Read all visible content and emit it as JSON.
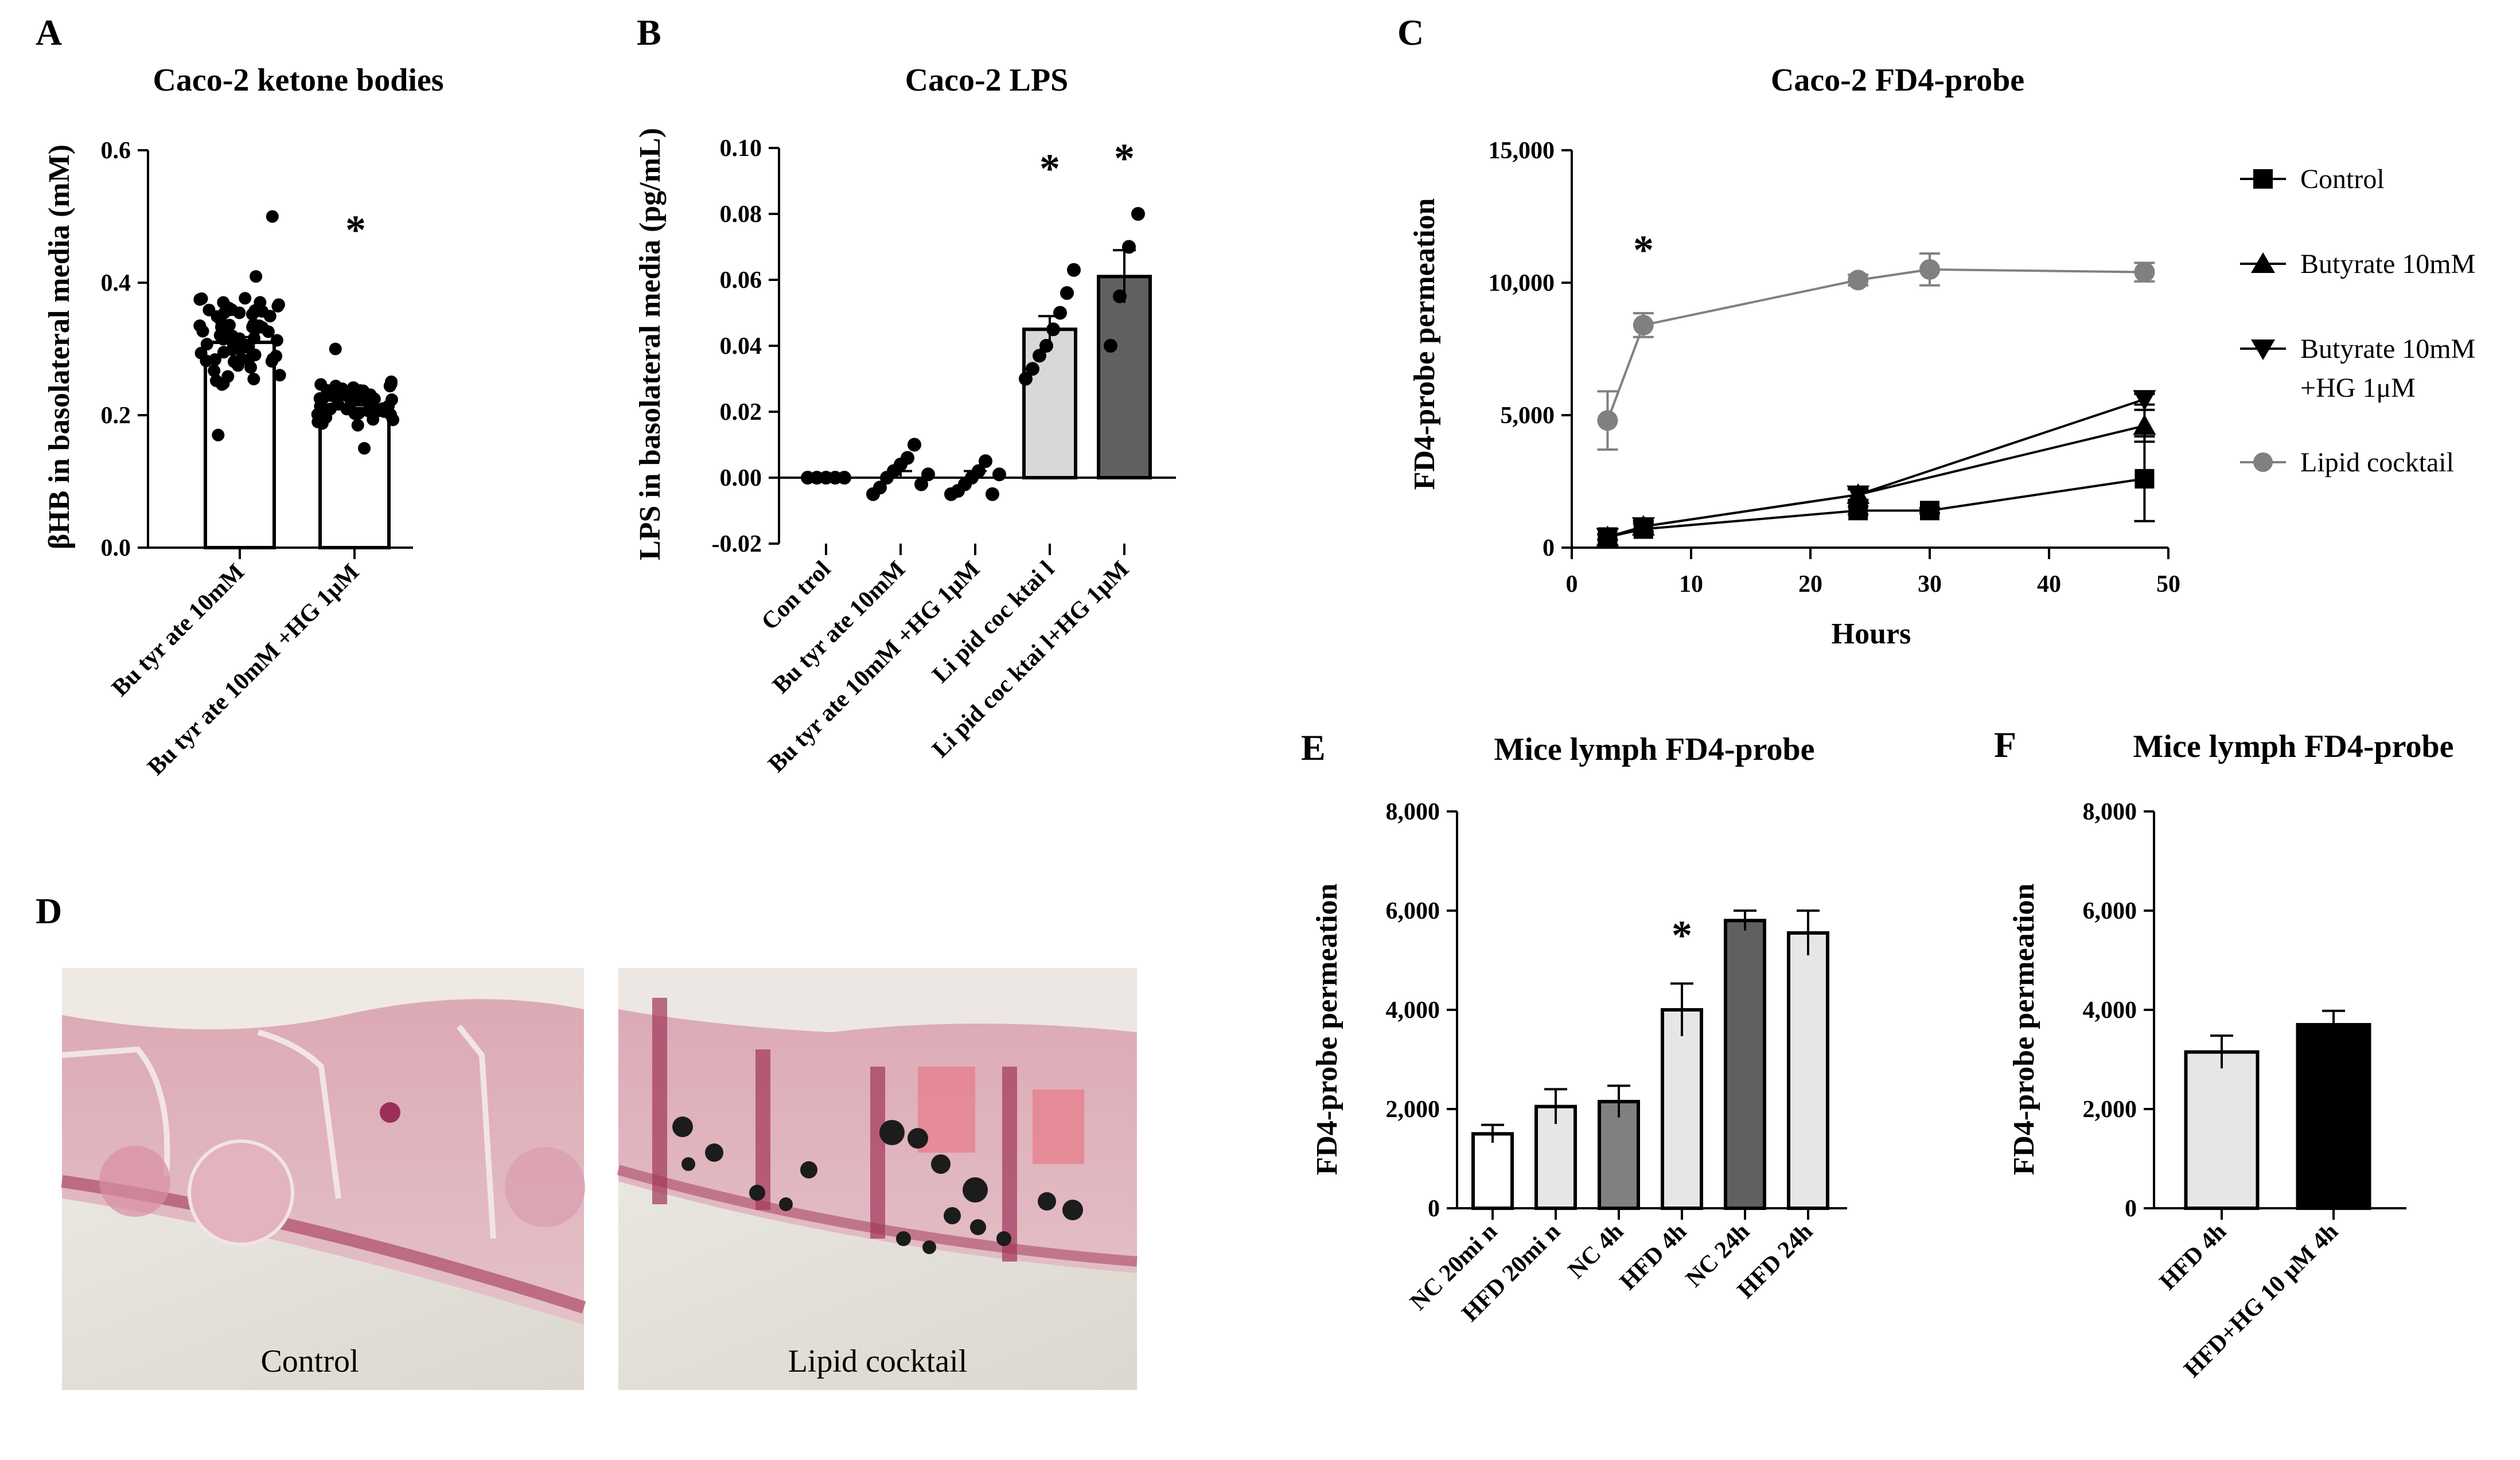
{
  "panels": {
    "A": {
      "letter": "A",
      "title": "Caco-2 ketone bodies",
      "ylabel": "βHB in basolateral media (mM)",
      "yticks": [
        "0.0",
        "0.2",
        "0.4",
        "0.6"
      ],
      "xticks": [
        "Bu tyr ate 10mM",
        "Bu tyr ate 10mM +HG 1μM"
      ],
      "star": "*"
    },
    "B": {
      "letter": "B",
      "title": "Caco-2 LPS",
      "ylabel": "LPS in basolateral media (pg/mL)",
      "yticks": [
        "-0.02",
        "0.00",
        "0.02",
        "0.04",
        "0.06",
        "0.08",
        "0.10"
      ],
      "xticks": [
        "Con trol",
        "Bu tyr ate 10mM",
        "Bu tyr ate 10mM +HG 1μM",
        "Li pid coc ktai l",
        "Li pid coc ktai l+HG 1μM"
      ],
      "star": "*"
    },
    "C": {
      "letter": "C",
      "title": "Caco-2 FD4-probe",
      "ylabel": "FD4-probe permeation",
      "xlabel": "Hours",
      "yticks": [
        "0",
        "5,000",
        "10,000",
        "15,000"
      ],
      "xticks": [
        "0",
        "10",
        "20",
        "30",
        "40",
        "50"
      ],
      "legend": [
        "Control",
        "Butyrate 10mM",
        "Butyrate 10mM",
        "+HG 1μM",
        "Lipid cocktail"
      ],
      "star": "*"
    },
    "D": {
      "letter": "D",
      "labels": [
        "Control",
        "Lipid cocktail"
      ]
    },
    "E": {
      "letter": "E",
      "title": "Mice lymph FD4-probe",
      "ylabel": "FD4-probe permeation",
      "yticks": [
        "0",
        "2,000",
        "4,000",
        "6,000",
        "8,000"
      ],
      "xticks": [
        "NC 20mi n",
        "HFD 20mi n",
        "NC 4h",
        "HFD 4h",
        "NC 24h",
        "HFD 24h"
      ],
      "star": "*"
    },
    "F": {
      "letter": "F",
      "title": "Mice lymph FD4-probe",
      "ylabel": "FD4-probe permeation",
      "yticks": [
        "0",
        "2,000",
        "4,000",
        "6,000",
        "8,000"
      ],
      "xticks": [
        "HFD 4h",
        "HFD+HG 10 μM 4h"
      ]
    }
  },
  "chart_data": [
    {
      "panel": "A",
      "type": "bar",
      "title": "Caco-2 ketone bodies",
      "ylabel": "βHB in basolateral media (mM)",
      "ylim": [
        0,
        0.6
      ],
      "categories": [
        "Butyrate 10mM",
        "Butyrate 10mM +HG 1μM"
      ],
      "values": [
        0.31,
        0.21
      ],
      "errors": [
        0.008,
        0.005
      ],
      "colors": [
        "#ffffff",
        "#ffffff"
      ],
      "point_range": [
        [
          0.17,
          0.5
        ],
        [
          0.15,
          0.3
        ]
      ],
      "n_points": [
        70,
        56
      ],
      "significant": [
        false,
        true
      ]
    },
    {
      "panel": "B",
      "type": "bar",
      "title": "Caco-2 LPS",
      "ylabel": "LPS in basolateral media (pg/mL)",
      "ylim": [
        -0.02,
        0.1
      ],
      "categories": [
        "Control",
        "Butyrate 10mM",
        "Butyrate 10mM +HG 1μM",
        "Lipid cocktail",
        "Lipid cocktail+HG 1μM"
      ],
      "values": [
        0.0,
        0.0,
        0.0,
        0.045,
        0.061
      ],
      "errors": [
        0.0,
        0.002,
        0.002,
        0.004,
        0.008
      ],
      "colors": [
        "#ffffff",
        "#ffffff",
        "#ffffff",
        "#d8d8d8",
        "#606060"
      ],
      "points": [
        [
          0.0,
          0.0,
          0.0,
          0.0,
          0.0
        ],
        [
          -0.005,
          -0.003,
          0.0,
          0.002,
          0.004,
          0.006,
          0.01,
          -0.002,
          0.001
        ],
        [
          -0.005,
          -0.004,
          -0.002,
          0.0,
          0.002,
          0.005,
          -0.005,
          0.001
        ],
        [
          0.03,
          0.033,
          0.037,
          0.04,
          0.045,
          0.05,
          0.056,
          0.063
        ],
        [
          0.04,
          0.055,
          0.07,
          0.08
        ]
      ],
      "significant": [
        false,
        false,
        false,
        true,
        true
      ]
    },
    {
      "panel": "C",
      "type": "line",
      "title": "Caco-2 FD4-probe",
      "xlabel": "Hours",
      "ylabel": "FD4-probe permeation",
      "xlim": [
        0,
        50
      ],
      "ylim": [
        0,
        15000
      ],
      "series": [
        {
          "name": "Control",
          "marker": "square",
          "color": "#000000",
          "x": [
            3,
            6,
            24,
            30,
            48
          ],
          "y": [
            400,
            700,
            1400,
            1400,
            2600
          ],
          "err": [
            100,
            200,
            150,
            100,
            1600
          ]
        },
        {
          "name": "Butyrate 10mM",
          "marker": "triangle-up",
          "color": "#000000",
          "x": [
            3,
            6,
            24,
            48
          ],
          "y": [
            400,
            800,
            2000,
            4600
          ],
          "err": [
            100,
            200,
            200,
            600
          ]
        },
        {
          "name": "Butyrate 10mM +HG 1μM",
          "marker": "triangle-down",
          "color": "#000000",
          "x": [
            3,
            6,
            24,
            48
          ],
          "y": [
            400,
            800,
            2000,
            5600
          ],
          "err": [
            100,
            200,
            200,
            200
          ]
        },
        {
          "name": "Lipid cocktail",
          "marker": "circle",
          "color": "#808080",
          "x": [
            3,
            6,
            24,
            30,
            48
          ],
          "y": [
            4800,
            8400,
            10100,
            10500,
            10400
          ],
          "err": [
            1100,
            450,
            200,
            600,
            350
          ]
        }
      ],
      "significant_x": [
        6
      ]
    },
    {
      "panel": "E",
      "type": "bar",
      "title": "Mice lymph FD4-probe",
      "ylabel": "FD4-probe permeation",
      "ylim": [
        0,
        8000
      ],
      "categories": [
        "NC 20min",
        "HFD 20min",
        "NC 4h",
        "HFD 4h",
        "NC 24h",
        "HFD 24h"
      ],
      "values": [
        1500,
        2050,
        2150,
        4000,
        5800,
        5550
      ],
      "errors": [
        180,
        350,
        320,
        530,
        200,
        450
      ],
      "colors": [
        "#ffffff",
        "#e6e6e6",
        "#808080",
        "#e6e6e6",
        "#606060",
        "#e6e6e6"
      ],
      "significant": [
        false,
        false,
        false,
        true,
        false,
        false
      ]
    },
    {
      "panel": "F",
      "type": "bar",
      "title": "Mice lymph FD4-probe",
      "ylabel": "FD4-probe permeation",
      "ylim": [
        0,
        8000
      ],
      "categories": [
        "HFD 4h",
        "HFD+HG 10 μM 4h"
      ],
      "values": [
        3150,
        3700
      ],
      "errors": [
        330,
        280
      ],
      "colors": [
        "#e6e6e6",
        "#000000"
      ]
    }
  ]
}
